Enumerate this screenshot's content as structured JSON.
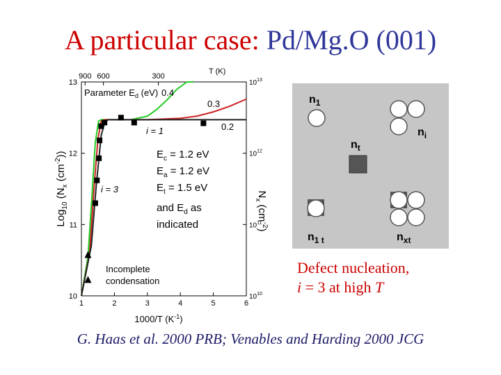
{
  "slide": {
    "title_part1": "A particular case: ",
    "title_part2": "Pd/Mg.O (001)",
    "caption_line1": "Defect nucleation,",
    "caption_line2_i": "i",
    "caption_line2_mid": " = 3 at high ",
    "caption_line2_T": "T",
    "footer": "G. Haas et al. 2000 PRB; Venables and Harding 2000 JCG",
    "colors": {
      "title_red": "#cc0000",
      "title_blue": "#2f3699",
      "schematic_bg": "#c6c6c6",
      "green": "#22cc22",
      "red": "#cc2222"
    }
  },
  "chart_data": {
    "type": "line",
    "xlabel": "1000/T (K",
    "xlabel_sup": "-1",
    "xlabel_end": ")",
    "ylabel_left": "Log",
    "ylabel_left_sub": "10",
    "ylabel_left_mid": " (N",
    "ylabel_left_sub2": "x",
    "ylabel_left_mid2": " (cm",
    "ylabel_left_sup": "-2",
    "ylabel_left_end": "))",
    "ylabel_right": "N",
    "ylabel_right_sub": "x",
    "ylabel_right_mid": " (cm",
    "ylabel_right_sup": "-2",
    "ylabel_right_end": ")",
    "top_axis_label": "T (K)",
    "xlim": [
      1,
      6
    ],
    "ylim": [
      10,
      13
    ],
    "x_ticks": [
      "1",
      "2",
      "3",
      "4",
      "5",
      "6"
    ],
    "y_ticks": [
      "10",
      "11",
      "12",
      "13"
    ],
    "right_ticks": [
      "10",
      "10",
      "10",
      "10"
    ],
    "right_ticks_sup": [
      "10",
      "11",
      "12",
      "13"
    ],
    "top_ticks": [
      {
        "label": "900",
        "x": 1.111
      },
      {
        "label": "600",
        "x": 1.667
      },
      {
        "label": "300",
        "x": 3.333
      }
    ],
    "parameter_label": "Parameter E",
    "parameter_sub": "d",
    "parameter_unit": " (eV)",
    "parameter_values": [
      "0.4",
      "0.3",
      "0.2"
    ],
    "annot_i1": "i = 1",
    "annot_i3": "i = 3",
    "energy_lines": [
      {
        "main": "E",
        "sub": "c",
        "rest": " = 1.2 eV"
      },
      {
        "main": "E",
        "sub": "a",
        "rest": " = 1.2 eV"
      },
      {
        "main": "E",
        "sub": "t",
        "rest": " = 1.5 eV"
      },
      {
        "main": "and E",
        "sub": "d",
        "rest": " as"
      },
      {
        "main": "indicated",
        "sub": "",
        "rest": ""
      }
    ],
    "incomplete_1": "Incomplete",
    "incomplete_2": "condensation",
    "series": [
      {
        "name": "0.4",
        "color": "#22cc22",
        "x": [
          1.0,
          1.2,
          1.32,
          1.42,
          1.52,
          1.6,
          1.7,
          2.0,
          2.5,
          3.0,
          3.3,
          3.6,
          3.9,
          4.2,
          4.4
        ],
        "y": [
          10.0,
          10.55,
          11.4,
          12.15,
          12.45,
          12.47,
          12.47,
          12.47,
          12.47,
          12.52,
          12.62,
          12.75,
          12.9,
          13.05,
          13.12
        ]
      },
      {
        "name": "0.3",
        "color": "#cc2222",
        "x": [
          1.0,
          1.25,
          1.38,
          1.5,
          1.6,
          1.7,
          2.0,
          3.0,
          4.0,
          4.5,
          5.0,
          5.5,
          6.0
        ],
        "y": [
          10.0,
          10.6,
          11.5,
          12.2,
          12.45,
          12.47,
          12.47,
          12.47,
          12.49,
          12.52,
          12.58,
          12.66,
          12.76
        ]
      },
      {
        "name": "0.2",
        "color": "#222222",
        "x": [
          1.0,
          1.3,
          1.45,
          1.6,
          1.7,
          1.8,
          2.0,
          3.0,
          4.0,
          5.0,
          6.0
        ],
        "y": [
          10.0,
          10.7,
          11.55,
          12.25,
          12.42,
          12.47,
          12.47,
          12.47,
          12.47,
          12.47,
          12.47
        ]
      }
    ],
    "points_square": [
      {
        "x": 1.42,
        "y": 11.3
      },
      {
        "x": 1.47,
        "y": 11.62
      },
      {
        "x": 1.53,
        "y": 11.93
      },
      {
        "x": 1.55,
        "y": 12.18
      },
      {
        "x": 1.6,
        "y": 12.38
      },
      {
        "x": 1.7,
        "y": 12.43
      },
      {
        "x": 2.2,
        "y": 12.5
      },
      {
        "x": 2.6,
        "y": 12.43
      },
      {
        "x": 4.7,
        "y": 12.42
      }
    ],
    "points_triangle": [
      {
        "x": 1.2,
        "y": 10.57
      },
      {
        "x": 1.2,
        "y": 10.22
      }
    ]
  },
  "schematic": {
    "labels": {
      "n1": "n",
      "n1_sub": "1",
      "ni": "n",
      "ni_sub": "i",
      "nt": "n",
      "nt_sub": "t",
      "n1t": "n",
      "n1t_sub": "1 t",
      "nxt": "n",
      "nxt_sub": "xt"
    }
  }
}
